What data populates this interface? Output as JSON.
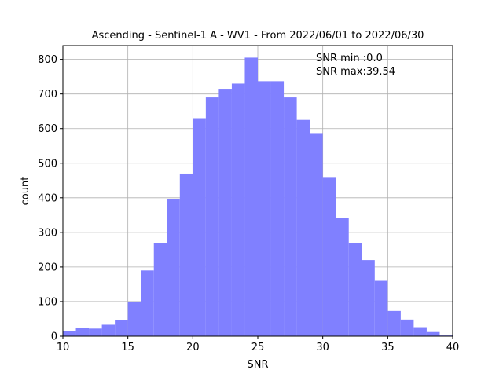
{
  "chart_data": {
    "type": "bar",
    "title": "Ascending - Sentinel-1 A - WV1 - From 2022/06/01 to 2022/06/30",
    "xlabel": "SNR",
    "ylabel": "count",
    "xlim": [
      10,
      40
    ],
    "ylim": [
      0,
      840
    ],
    "x_ticks": [
      10,
      15,
      20,
      25,
      30,
      35,
      40
    ],
    "y_ticks": [
      0,
      100,
      200,
      300,
      400,
      500,
      600,
      700,
      800
    ],
    "grid": true,
    "bar_color": "#8080ff",
    "bins": [
      {
        "x0": 10.0,
        "x1": 11.0,
        "count": 15
      },
      {
        "x0": 11.0,
        "x1": 12.0,
        "count": 25
      },
      {
        "x0": 12.0,
        "x1": 13.0,
        "count": 22
      },
      {
        "x0": 13.0,
        "x1": 14.0,
        "count": 33
      },
      {
        "x0": 14.0,
        "x1": 15.0,
        "count": 47
      },
      {
        "x0": 15.0,
        "x1": 16.0,
        "count": 100
      },
      {
        "x0": 16.0,
        "x1": 17.0,
        "count": 190
      },
      {
        "x0": 17.0,
        "x1": 18.0,
        "count": 268
      },
      {
        "x0": 18.0,
        "x1": 19.0,
        "count": 395
      },
      {
        "x0": 19.0,
        "x1": 20.0,
        "count": 470
      },
      {
        "x0": 20.0,
        "x1": 21.0,
        "count": 630
      },
      {
        "x0": 21.0,
        "x1": 22.0,
        "count": 690
      },
      {
        "x0": 22.0,
        "x1": 23.0,
        "count": 715
      },
      {
        "x0": 23.0,
        "x1": 24.0,
        "count": 730
      },
      {
        "x0": 24.0,
        "x1": 25.0,
        "count": 805
      },
      {
        "x0": 25.0,
        "x1": 26.0,
        "count": 737
      },
      {
        "x0": 26.0,
        "x1": 27.0,
        "count": 737
      },
      {
        "x0": 27.0,
        "x1": 28.0,
        "count": 690
      },
      {
        "x0": 28.0,
        "x1": 29.0,
        "count": 625
      },
      {
        "x0": 29.0,
        "x1": 30.0,
        "count": 587
      },
      {
        "x0": 30.0,
        "x1": 31.0,
        "count": 460
      },
      {
        "x0": 31.0,
        "x1": 32.0,
        "count": 342
      },
      {
        "x0": 32.0,
        "x1": 33.0,
        "count": 270
      },
      {
        "x0": 33.0,
        "x1": 34.0,
        "count": 220
      },
      {
        "x0": 34.0,
        "x1": 35.0,
        "count": 160
      },
      {
        "x0": 35.0,
        "x1": 36.0,
        "count": 73
      },
      {
        "x0": 36.0,
        "x1": 37.0,
        "count": 48
      },
      {
        "x0": 37.0,
        "x1": 38.0,
        "count": 26
      },
      {
        "x0": 38.0,
        "x1": 39.0,
        "count": 12
      },
      {
        "x0": 39.0,
        "x1": 40.0,
        "count": 2
      }
    ],
    "annotations": [
      "SNR min :0.0",
      "SNR max:39.54"
    ]
  }
}
